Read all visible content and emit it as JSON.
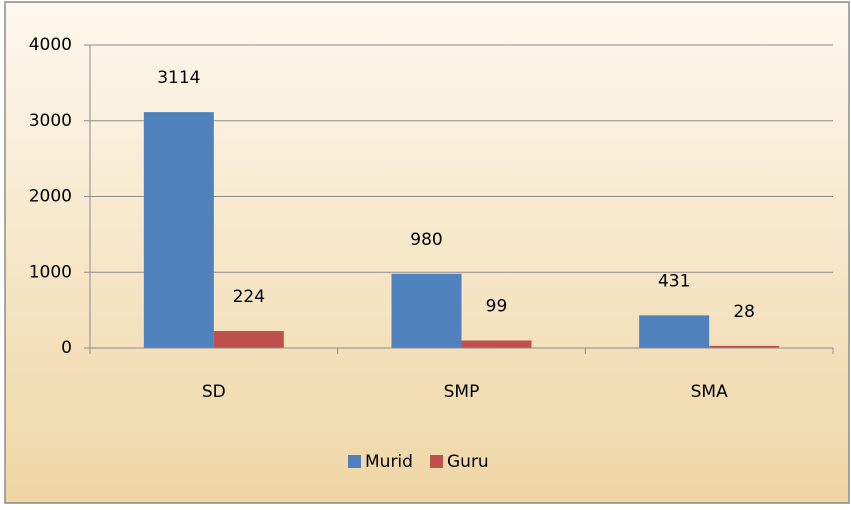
{
  "chart_data": {
    "type": "bar",
    "categories": [
      "SD",
      "SMP",
      "SMA"
    ],
    "series": [
      {
        "name": "Murid",
        "color": "#4f81bd",
        "values": [
          3114,
          980,
          431
        ]
      },
      {
        "name": "Guru",
        "color": "#c0504d",
        "values": [
          224,
          99,
          28
        ]
      }
    ],
    "ylim": [
      0,
      4000
    ],
    "yticks": [
      0,
      1000,
      2000,
      3000,
      4000
    ],
    "grid": true,
    "legend": "bottom"
  }
}
